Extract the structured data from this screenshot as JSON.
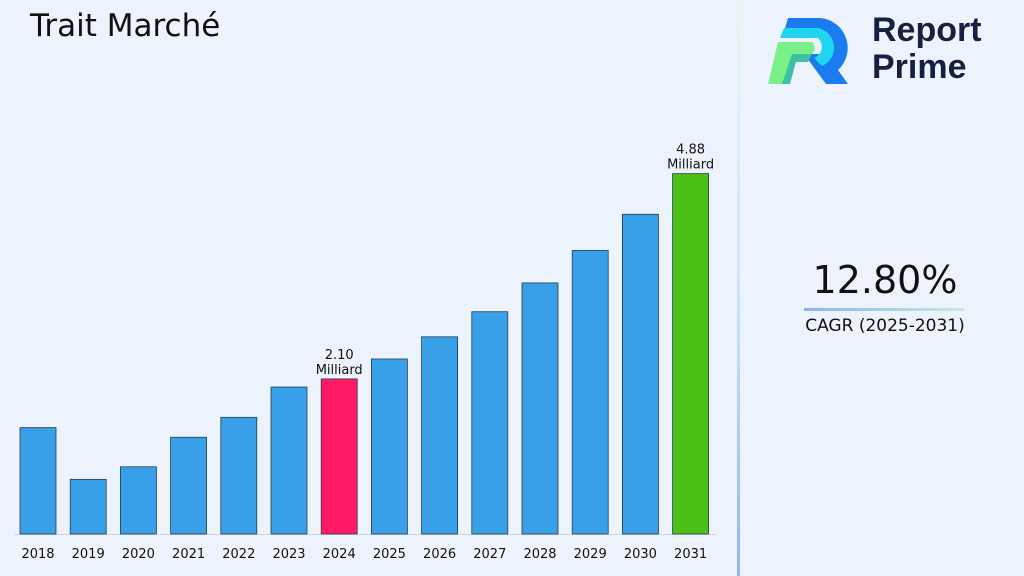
{
  "chart_data": {
    "type": "bar",
    "title": "Trait Marché",
    "categories": [
      "2018",
      "2019",
      "2020",
      "2021",
      "2022",
      "2023",
      "2024",
      "2025",
      "2026",
      "2027",
      "2028",
      "2029",
      "2030",
      "2031"
    ],
    "values": [
      1.44,
      0.74,
      0.91,
      1.31,
      1.58,
      1.99,
      2.1,
      2.37,
      2.67,
      3.01,
      3.4,
      3.84,
      4.33,
      4.88
    ],
    "data_labels": {
      "6": [
        "2.10",
        "Milliard"
      ],
      "13": [
        "4.88",
        "Milliard"
      ]
    },
    "colors": {
      "default": "#38a0e8",
      "highlight_2024": "#ff1a66",
      "highlight_2031": "#4cbf14"
    },
    "ylim": [
      0,
      5.2
    ],
    "grid": false,
    "xlabel": "",
    "ylabel": ""
  },
  "brand": {
    "line1": "Report",
    "line2": "Prime"
  },
  "cagr": {
    "value": "12.80%",
    "label": "CAGR (2025-2031)"
  }
}
